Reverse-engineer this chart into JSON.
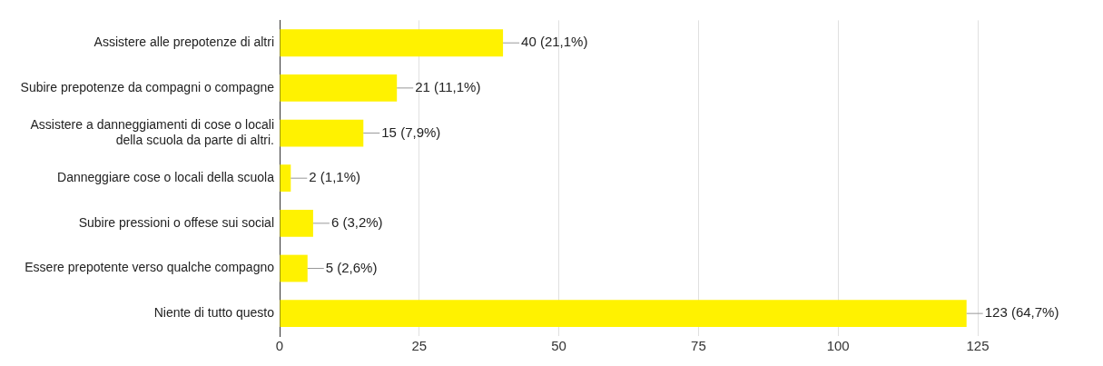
{
  "chart_data": {
    "type": "bar",
    "orientation": "horizontal",
    "categories": [
      "Assistere alle prepotenze di altri",
      "Subire prepotenze da compagni o compagne",
      "Assistere a danneggiamenti di cose o locali della scuola da parte di altri.",
      "Danneggiare cose o locali della scuola",
      "Subire pressioni o offese sui social",
      "Essere prepotente verso qualche compagno",
      "Niente di tutto questo"
    ],
    "values": [
      40,
      21,
      15,
      2,
      6,
      5,
      123
    ],
    "value_labels": [
      "40 (21,1%)",
      "21 (11,1%)",
      "15 (7,9%)",
      "2 (1,1%)",
      "6 (3,2%)",
      "5 (2,6%)",
      "123 (64,7%)"
    ],
    "color": "#fff200",
    "xlim": [
      0,
      125
    ],
    "xticks": [
      0,
      25,
      50,
      75,
      100,
      125
    ],
    "grid": "x",
    "legend": false
  }
}
